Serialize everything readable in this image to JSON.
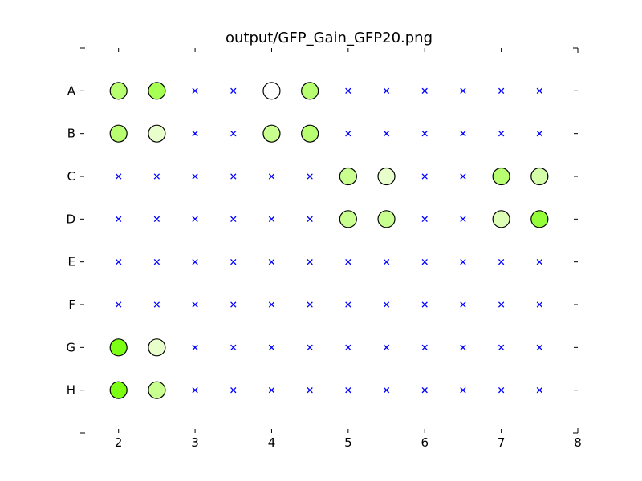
{
  "chart_data": {
    "type": "scatter",
    "title": "output/GFP_Gain_GFP20.png",
    "xlabel": "",
    "ylabel": "",
    "xlim": [
      1.5,
      8
    ],
    "x_ticks": [
      2,
      3,
      4,
      5,
      6,
      7,
      8
    ],
    "rows": [
      "A",
      "B",
      "C",
      "D",
      "E",
      "F",
      "G",
      "H"
    ],
    "columns_x": [
      2,
      2.5,
      3,
      3.5,
      4,
      4.5,
      5,
      5.5,
      6,
      6.5,
      7,
      7.5
    ],
    "grid": false,
    "empty_marker": "x",
    "empty_color": "#0000ff",
    "filled_markers": [
      {
        "row": "A",
        "x": 2,
        "color": "#b7ff70"
      },
      {
        "row": "A",
        "x": 2.5,
        "color": "#a6ff52"
      },
      {
        "row": "A",
        "x": 4,
        "color": "#ffffff"
      },
      {
        "row": "A",
        "x": 4.5,
        "color": "#b7ff70"
      },
      {
        "row": "B",
        "x": 2,
        "color": "#b7ff70"
      },
      {
        "row": "B",
        "x": 2.5,
        "color": "#e8ffcc"
      },
      {
        "row": "B",
        "x": 4,
        "color": "#c8ff8f"
      },
      {
        "row": "B",
        "x": 4.5,
        "color": "#b7ff70"
      },
      {
        "row": "C",
        "x": 5,
        "color": "#c8ff8f"
      },
      {
        "row": "C",
        "x": 5.5,
        "color": "#e8ffcc"
      },
      {
        "row": "C",
        "x": 7,
        "color": "#b7ff70"
      },
      {
        "row": "C",
        "x": 7.5,
        "color": "#d4ffa8"
      },
      {
        "row": "D",
        "x": 5,
        "color": "#c8ff8f"
      },
      {
        "row": "D",
        "x": 5.5,
        "color": "#c8ff8f"
      },
      {
        "row": "D",
        "x": 7,
        "color": "#dcffb5"
      },
      {
        "row": "D",
        "x": 7.5,
        "color": "#94ff38"
      },
      {
        "row": "G",
        "x": 2,
        "color": "#7dff14"
      },
      {
        "row": "G",
        "x": 2.5,
        "color": "#e8ffcc"
      },
      {
        "row": "H",
        "x": 2,
        "color": "#7dff14"
      },
      {
        "row": "H",
        "x": 2.5,
        "color": "#c8ff8f"
      }
    ]
  }
}
